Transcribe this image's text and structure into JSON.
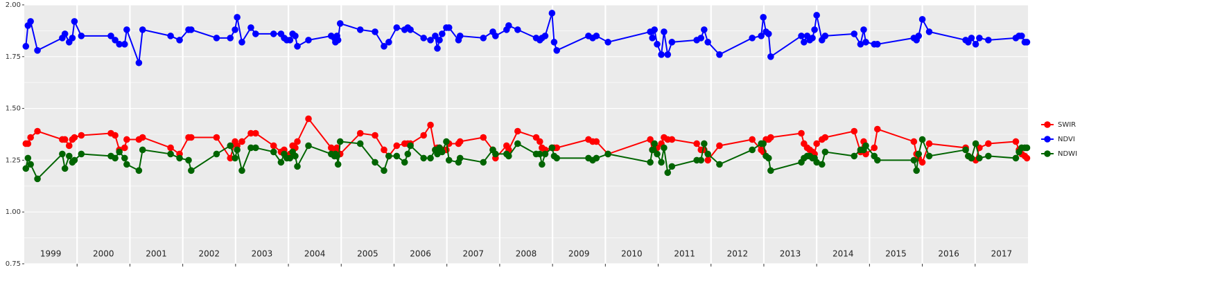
{
  "chart_data": {
    "type": "line",
    "xlim": [
      1999,
      2018
    ],
    "ylim": [
      0.75,
      2.0
    ],
    "yticks": [
      {
        "value": 0.75,
        "label": "0.75"
      },
      {
        "value": 1.0,
        "label": "1.00"
      },
      {
        "value": 1.25,
        "label": "1.25"
      },
      {
        "value": 1.5,
        "label": "1.50"
      },
      {
        "value": 1.75,
        "label": "1.75"
      },
      {
        "value": 2.0,
        "label": "2.00"
      }
    ],
    "yminor": [
      0.875,
      1.125,
      1.375,
      1.625,
      1.875
    ],
    "xticks": [
      {
        "value": 1999.5,
        "label": "1999"
      },
      {
        "value": 2000.5,
        "label": "2000"
      },
      {
        "value": 2001.5,
        "label": "2001"
      },
      {
        "value": 2002.5,
        "label": "2002"
      },
      {
        "value": 2003.5,
        "label": "2003"
      },
      {
        "value": 2004.5,
        "label": "2004"
      },
      {
        "value": 2005.5,
        "label": "2005"
      },
      {
        "value": 2006.5,
        "label": "2006"
      },
      {
        "value": 2007.5,
        "label": "2007"
      },
      {
        "value": 2008.5,
        "label": "2008"
      },
      {
        "value": 2009.5,
        "label": "2009"
      },
      {
        "value": 2010.5,
        "label": "2010"
      },
      {
        "value": 2011.5,
        "label": "2011"
      },
      {
        "value": 2012.5,
        "label": "2012"
      },
      {
        "value": 2013.5,
        "label": "2013"
      },
      {
        "value": 2014.5,
        "label": "2014"
      },
      {
        "value": 2015.5,
        "label": "2015"
      },
      {
        "value": 2016.5,
        "label": "2016"
      },
      {
        "value": 2017.5,
        "label": "2017"
      }
    ],
    "x_grid": [
      2000,
      2001,
      2002,
      2003,
      2004,
      2005,
      2006,
      2007,
      2008,
      2009,
      2010,
      2011,
      2012,
      2013,
      2014,
      2015,
      2016,
      2017
    ],
    "grid": true,
    "legend": "right",
    "x": [
      1999.03,
      1999.07,
      1999.12,
      1999.25,
      1999.72,
      1999.77,
      1999.85,
      1999.91,
      1999.95,
      2000.08,
      2000.64,
      2000.72,
      2000.8,
      2000.9,
      2000.94,
      2001.17,
      2001.24,
      2001.77,
      2001.94,
      2002.11,
      2002.16,
      2002.64,
      2002.9,
      2002.99,
      2003.03,
      2003.12,
      2003.29,
      2003.38,
      2003.72,
      2003.86,
      2003.92,
      2003.97,
      2004.03,
      2004.08,
      2004.13,
      2004.17,
      2004.38,
      2004.81,
      2004.87,
      2004.89,
      2004.92,
      2004.94,
      2004.98,
      2005.36,
      2005.64,
      2005.81,
      2005.9,
      2006.05,
      2006.2,
      2006.26,
      2006.31,
      2006.56,
      2006.69,
      2006.78,
      2006.82,
      2006.86,
      2006.91,
      2006.99,
      2007.04,
      2007.22,
      2007.25,
      2007.69,
      2007.87,
      2007.92,
      2008.13,
      2008.17,
      2008.34,
      2008.69,
      2008.76,
      2008.8,
      2008.86,
      2008.99,
      2009.03,
      2009.08,
      2009.68,
      2009.76,
      2009.83,
      2010.05,
      2010.85,
      2010.89,
      2010.93,
      2010.98,
      2011.06,
      2011.11,
      2011.18,
      2011.26,
      2011.73,
      2011.81,
      2011.87,
      2011.94,
      2012.16,
      2012.78,
      2012.95,
      2012.99,
      2013.04,
      2013.09,
      2013.13,
      2013.71,
      2013.76,
      2013.82,
      2013.87,
      2013.92,
      2013.96,
      2014.0,
      2014.1,
      2014.16,
      2014.71,
      2014.83,
      2014.89,
      2014.93,
      2015.09,
      2015.15,
      2015.84,
      2015.89,
      2015.93,
      2016.0,
      2016.13,
      2016.82,
      2016.87,
      2016.93,
      2017.01,
      2017.08,
      2017.25,
      2017.77,
      2017.83,
      2017.88,
      2017.94,
      2017.98
    ],
    "series": [
      {
        "name": "SWIR",
        "color": "#ff0000",
        "values": [
          1.33,
          1.33,
          1.36,
          1.39,
          1.35,
          1.35,
          1.32,
          1.35,
          1.36,
          1.37,
          1.38,
          1.37,
          1.3,
          1.31,
          1.35,
          1.35,
          1.36,
          1.31,
          1.28,
          1.36,
          1.36,
          1.36,
          1.26,
          1.34,
          1.32,
          1.34,
          1.38,
          1.38,
          1.32,
          1.29,
          1.3,
          1.27,
          1.28,
          1.32,
          1.31,
          1.34,
          1.45,
          1.31,
          1.3,
          1.28,
          1.31,
          1.28,
          1.28,
          1.38,
          1.37,
          1.3,
          1.27,
          1.32,
          1.33,
          1.33,
          1.33,
          1.37,
          1.42,
          1.3,
          1.31,
          1.31,
          1.3,
          1.3,
          1.33,
          1.33,
          1.34,
          1.36,
          1.3,
          1.26,
          1.32,
          1.3,
          1.39,
          1.36,
          1.34,
          1.31,
          1.3,
          1.31,
          1.31,
          1.31,
          1.35,
          1.34,
          1.34,
          1.28,
          1.35,
          1.3,
          1.3,
          1.31,
          1.33,
          1.36,
          1.35,
          1.35,
          1.33,
          1.3,
          1.3,
          1.25,
          1.32,
          1.35,
          1.3,
          1.29,
          1.35,
          1.35,
          1.36,
          1.38,
          1.33,
          1.31,
          1.3,
          1.29,
          1.28,
          1.33,
          1.35,
          1.36,
          1.39,
          1.29,
          1.34,
          1.28,
          1.31,
          1.4,
          1.34,
          1.28,
          1.26,
          1.24,
          1.33,
          1.31,
          1.27,
          1.26,
          1.25,
          1.31,
          1.33,
          1.34,
          1.3,
          1.28,
          1.27,
          1.26
        ]
      },
      {
        "name": "NDVI",
        "color": "#0000ff",
        "values": [
          1.8,
          1.9,
          1.92,
          1.78,
          1.84,
          1.86,
          1.82,
          1.84,
          1.92,
          1.85,
          1.85,
          1.83,
          1.81,
          1.81,
          1.88,
          1.72,
          1.88,
          1.85,
          1.83,
          1.88,
          1.88,
          1.84,
          1.84,
          1.88,
          1.94,
          1.82,
          1.89,
          1.86,
          1.86,
          1.86,
          1.84,
          1.83,
          1.83,
          1.86,
          1.85,
          1.8,
          1.83,
          1.85,
          1.84,
          1.82,
          1.85,
          1.83,
          1.91,
          1.88,
          1.87,
          1.8,
          1.82,
          1.89,
          1.88,
          1.89,
          1.88,
          1.84,
          1.83,
          1.85,
          1.79,
          1.83,
          1.86,
          1.89,
          1.89,
          1.83,
          1.85,
          1.84,
          1.87,
          1.85,
          1.88,
          1.9,
          1.88,
          1.84,
          1.83,
          1.84,
          1.85,
          1.96,
          1.82,
          1.78,
          1.85,
          1.84,
          1.85,
          1.82,
          1.87,
          1.84,
          1.88,
          1.81,
          1.76,
          1.87,
          1.76,
          1.82,
          1.83,
          1.84,
          1.88,
          1.82,
          1.76,
          1.84,
          1.85,
          1.94,
          1.87,
          1.86,
          1.75,
          1.85,
          1.82,
          1.85,
          1.83,
          1.84,
          1.88,
          1.95,
          1.83,
          1.85,
          1.86,
          1.81,
          1.88,
          1.82,
          1.81,
          1.81,
          1.84,
          1.83,
          1.85,
          1.93,
          1.87,
          1.83,
          1.82,
          1.84,
          1.81,
          1.84,
          1.83,
          1.84,
          1.85,
          1.85,
          1.82,
          1.82
        ]
      },
      {
        "name": "NDWI",
        "color": "#006400",
        "values": [
          1.21,
          1.26,
          1.23,
          1.16,
          1.28,
          1.21,
          1.27,
          1.24,
          1.25,
          1.28,
          1.27,
          1.26,
          1.29,
          1.26,
          1.23,
          1.2,
          1.3,
          1.28,
          1.26,
          1.25,
          1.2,
          1.28,
          1.32,
          1.26,
          1.3,
          1.2,
          1.31,
          1.31,
          1.29,
          1.24,
          1.28,
          1.26,
          1.26,
          1.29,
          1.27,
          1.22,
          1.32,
          1.28,
          1.27,
          1.28,
          1.27,
          1.23,
          1.34,
          1.33,
          1.24,
          1.2,
          1.27,
          1.27,
          1.24,
          1.28,
          1.32,
          1.26,
          1.26,
          1.3,
          1.28,
          1.31,
          1.29,
          1.34,
          1.25,
          1.24,
          1.26,
          1.24,
          1.3,
          1.28,
          1.28,
          1.27,
          1.33,
          1.28,
          1.28,
          1.23,
          1.28,
          1.31,
          1.27,
          1.26,
          1.26,
          1.25,
          1.26,
          1.28,
          1.24,
          1.3,
          1.33,
          1.28,
          1.24,
          1.31,
          1.19,
          1.22,
          1.25,
          1.25,
          1.33,
          1.28,
          1.23,
          1.3,
          1.33,
          1.33,
          1.27,
          1.26,
          1.2,
          1.24,
          1.26,
          1.27,
          1.27,
          1.26,
          1.26,
          1.24,
          1.23,
          1.29,
          1.27,
          1.3,
          1.3,
          1.32,
          1.27,
          1.25,
          1.25,
          1.2,
          1.28,
          1.35,
          1.27,
          1.3,
          1.27,
          1.26,
          1.33,
          1.26,
          1.27,
          1.26,
          1.29,
          1.31,
          1.31,
          1.31
        ]
      }
    ]
  }
}
